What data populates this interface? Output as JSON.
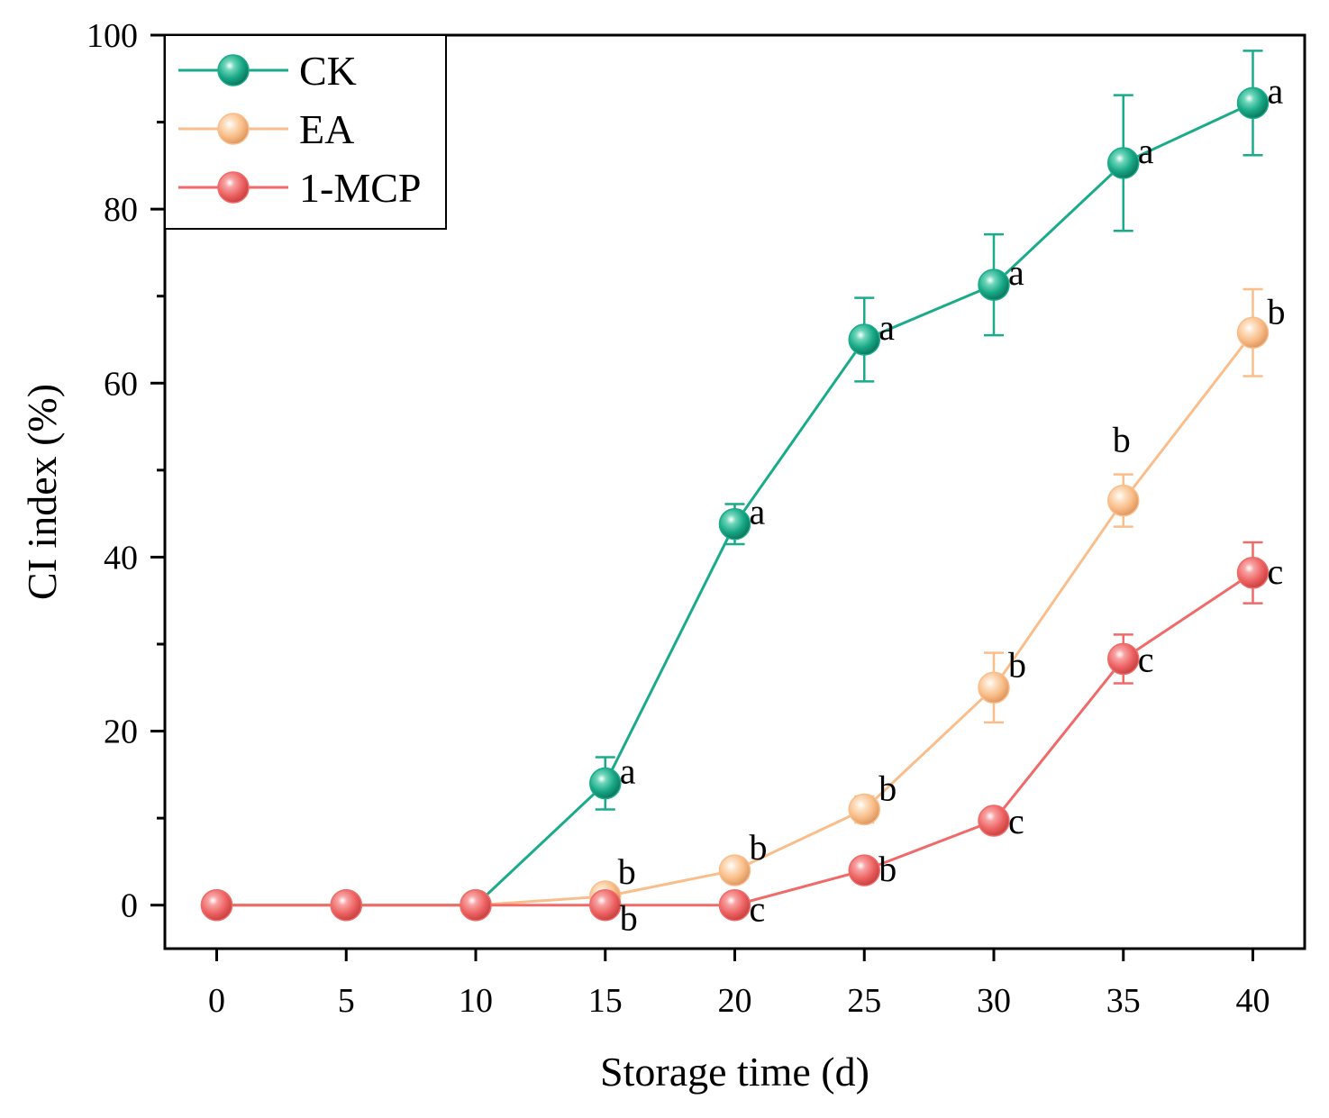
{
  "chart_data": {
    "type": "line",
    "title": "",
    "xlabel": "Storage time (d)",
    "ylabel": "CI index (%)",
    "xlim": [
      -2,
      42
    ],
    "ylim": [
      -5,
      100
    ],
    "x": [
      0,
      5,
      10,
      15,
      20,
      25,
      30,
      35,
      40
    ],
    "xticks": [
      "0",
      "5",
      "10",
      "15",
      "20",
      "25",
      "30",
      "35",
      "40"
    ],
    "yticks": [
      "0",
      "20",
      "40",
      "60",
      "80",
      "100"
    ],
    "legend_position": "top-left",
    "series": [
      {
        "name": "CK",
        "color": "#1aab8a",
        "values": [
          0,
          0,
          0,
          14,
          43.8,
          65,
          71.3,
          85.3,
          92.2
        ],
        "errors": [
          null,
          null,
          null,
          3,
          2.3,
          4.8,
          5.8,
          7.8,
          6
        ],
        "labels": [
          "",
          "",
          "",
          "a",
          "a",
          "a",
          "a",
          "a",
          "a"
        ]
      },
      {
        "name": "EA",
        "color": "#f9be8c",
        "values": [
          0,
          0,
          0,
          1,
          4,
          11,
          25,
          46.5,
          65.8
        ],
        "errors": [
          null,
          null,
          null,
          null,
          null,
          1.5,
          4,
          3,
          5
        ],
        "labels": [
          "",
          "",
          "",
          "b",
          "b",
          "b",
          "b",
          "b",
          "b"
        ]
      },
      {
        "name": "1-MCP",
        "color": "#f06a6a",
        "values": [
          0,
          0,
          0,
          0,
          0,
          4,
          9.7,
          28.3,
          38.2
        ],
        "errors": [
          null,
          null,
          null,
          null,
          null,
          null,
          null,
          2.8,
          3.5
        ],
        "labels": [
          "",
          "",
          "",
          "b",
          "c",
          "b",
          "c",
          "c",
          "c"
        ]
      }
    ]
  }
}
